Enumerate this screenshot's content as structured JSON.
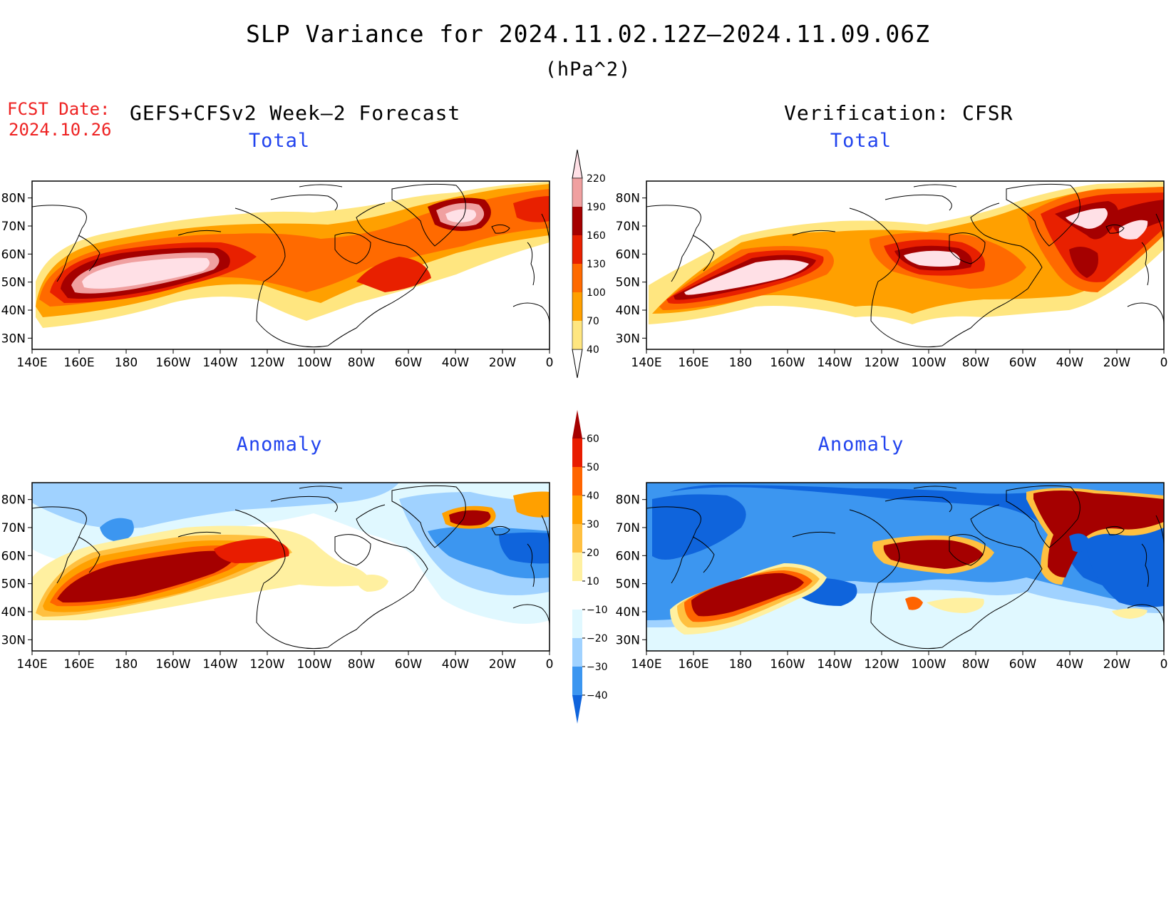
{
  "title": "SLP Variance for 2024.11.02.12Z–2024.11.09.06Z",
  "units": "(hPa^2)",
  "fcst": {
    "label": "FCST Date:",
    "date": "2024.10.26"
  },
  "left_header": "GEFS+CFSv2 Week–2 Forecast",
  "right_header": "Verification: CFSR",
  "panels": {
    "forecast_total": {
      "title": "Total"
    },
    "verification_total": {
      "title": "Total"
    },
    "forecast_anomaly": {
      "title": "Anomaly"
    },
    "verification_anomaly": {
      "title": "Anomaly"
    }
  },
  "axes": {
    "lon_labels": [
      "140E",
      "160E",
      "180",
      "160W",
      "140W",
      "120W",
      "100W",
      "80W",
      "60W",
      "40W",
      "20W",
      "0"
    ],
    "lat_labels": [
      "30N",
      "40N",
      "50N",
      "60N",
      "70N",
      "80N"
    ]
  },
  "colorbars": {
    "total": {
      "levels": [
        "40",
        "70",
        "100",
        "130",
        "160",
        "190",
        "220"
      ],
      "colors": [
        "#ffe680",
        "#ffa000",
        "#ff6a00",
        "#e82000",
        "#a50000",
        "#f0a0a0",
        "#ffe0e6"
      ]
    },
    "anomaly": {
      "levels": [
        "60",
        "50",
        "40",
        "30",
        "20",
        "10",
        "−10",
        "−20",
        "−30",
        "−40"
      ],
      "colors": [
        "#a50000",
        "#e81c00",
        "#ff6400",
        "#ffa000",
        "#ffc040",
        "#fff0a0",
        "#ffffff",
        "#e0f8ff",
        "#a0d2ff",
        "#3c96f0",
        "#0f64dc"
      ]
    }
  },
  "map_colors": {
    "total": [
      "#ffe680",
      "#ffa000",
      "#ff6a00",
      "#e82000",
      "#a50000",
      "#f0a0a0",
      "#ffe0e6"
    ],
    "anomaly_pos": [
      "#fff0a0",
      "#ffc040",
      "#ffa000",
      "#ff6400",
      "#e81c00",
      "#a50000"
    ],
    "anomaly_neg": [
      "#e0f8ff",
      "#a0d2ff",
      "#3c96f0",
      "#0f64dc"
    ]
  }
}
